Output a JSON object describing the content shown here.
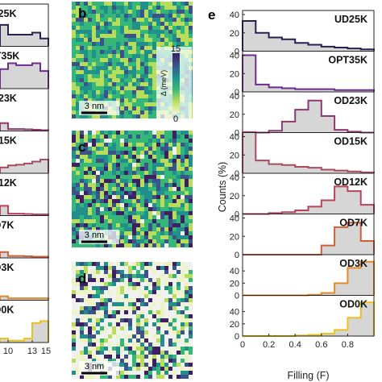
{
  "figure": {
    "panel_labels": {
      "b": "b",
      "c": "c",
      "d": "d",
      "e": "e"
    },
    "scale_bar_label": "3 nm",
    "colorbar": {
      "max_label": "15",
      "min_label": "0",
      "label": "Δ (meV)",
      "colors": [
        "#eef3c4",
        "#b8dd5a",
        "#35b779",
        "#21908d",
        "#3b528b",
        "#3d1f63"
      ]
    }
  },
  "left_column": {
    "labels": [
      "UD25K",
      "OPT35K",
      "OD23K",
      "OD15K",
      "OD12K",
      "OD7K",
      "OD3K",
      "OD0K"
    ],
    "colors": [
      "#2b1f4f",
      "#6f2b8c",
      "#8e3a6f",
      "#a84a62",
      "#b8435a",
      "#d0603a",
      "#e08a2a",
      "#ecc11f"
    ],
    "x_ticks": [
      "10",
      "13",
      "15"
    ],
    "bin_edges": [
      9,
      10,
      11,
      12,
      13,
      14,
      15
    ],
    "heights": [
      [
        0.55,
        0.3,
        0.3,
        0.3,
        0.35,
        0.2
      ],
      [
        0.5,
        0.65,
        0.6,
        0.6,
        0.65,
        0.45
      ],
      [
        0.2,
        0.05,
        0.05,
        0.04,
        0.03,
        0.02
      ],
      [
        0.15,
        0.2,
        0.22,
        0.25,
        0.3,
        0.35
      ],
      [
        0.25,
        0.05,
        0.05,
        0.04,
        0.03,
        0.03
      ],
      [
        0.15,
        0.05,
        0.05,
        0.04,
        0.03,
        0.03
      ],
      [
        0.1,
        0.05,
        0.05,
        0.05,
        0.05,
        0.05
      ],
      [
        0.1,
        0.05,
        0.05,
        0.1,
        0.5,
        0.55
      ]
    ]
  },
  "chart_data": {
    "type": "bar",
    "xlabel": "Filling (F)",
    "ylabel": "Counts (%)",
    "xlim": [
      0,
      1
    ],
    "x_ticks": [
      "0",
      "0.2",
      "0.4",
      "0.6",
      "0.8"
    ],
    "bin_edges": [
      0,
      0.1,
      0.2,
      0.3,
      0.4,
      0.5,
      0.6,
      0.7,
      0.8,
      0.9,
      1.0
    ],
    "series": [
      {
        "name": "UD25K",
        "ylim": [
          0,
          40
        ],
        "y_ticks": [
          "0",
          "20",
          "40"
        ],
        "color": "#2b1f4f",
        "values": [
          33,
          20,
          15,
          13,
          9,
          7,
          5,
          4,
          3,
          2
        ]
      },
      {
        "name": "OPT35K",
        "ylim": [
          0,
          40
        ],
        "y_ticks": [
          "0",
          "20",
          "40"
        ],
        "color": "#6f2b8c",
        "values": [
          40,
          8,
          5,
          4,
          3,
          3,
          3,
          2,
          2,
          2
        ]
      },
      {
        "name": "OD23K",
        "ylim": [
          0,
          40
        ],
        "y_ticks": [
          "0",
          "20",
          "40"
        ],
        "color": "#8e3a6f",
        "values": [
          0,
          0,
          2,
          12,
          25,
          35,
          18,
          3,
          1,
          0
        ]
      },
      {
        "name": "OD15K",
        "ylim": [
          0,
          40
        ],
        "y_ticks": [
          "0",
          "20",
          "40"
        ],
        "color": "#a84a62",
        "values": [
          45,
          14,
          10,
          9,
          7,
          6,
          4,
          3,
          2,
          1
        ]
      },
      {
        "name": "OD12K",
        "ylim": [
          0,
          40
        ],
        "y_ticks": [
          "0",
          "20",
          "40"
        ],
        "color": "#b8435a",
        "values": [
          0,
          0,
          1,
          2,
          4,
          8,
          15,
          30,
          25,
          10
        ]
      },
      {
        "name": "OD7K",
        "ylim": [
          0,
          40
        ],
        "y_ticks": [
          "0",
          "20",
          "40"
        ],
        "color": "#d0603a",
        "values": [
          0,
          0,
          0,
          0,
          0,
          0,
          10,
          30,
          35,
          15
        ]
      },
      {
        "name": "OD3K",
        "ylim": [
          0,
          60
        ],
        "y_ticks": [
          "0",
          "20",
          "40"
        ],
        "color": "#e08a2a",
        "values": [
          0,
          0,
          0,
          0,
          0,
          1,
          4,
          20,
          45,
          55
        ]
      },
      {
        "name": "OD0K",
        "ylim": [
          0,
          60
        ],
        "y_ticks": [
          "0",
          "20",
          "40"
        ],
        "color": "#ecc11f",
        "values": [
          0,
          0,
          0,
          0,
          1,
          2,
          4,
          10,
          30,
          55
        ]
      }
    ]
  }
}
